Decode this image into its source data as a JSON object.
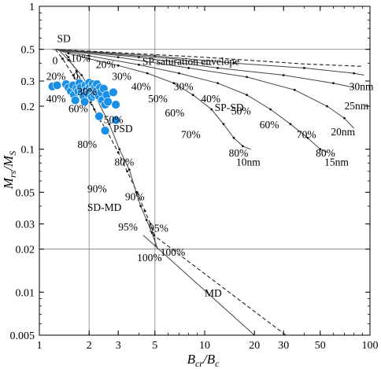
{
  "chart_data": {
    "type": "scatter",
    "title": "",
    "xscale": "log",
    "yscale": "log",
    "xlim": [
      1,
      100
    ],
    "ylim": [
      0.005,
      1
    ],
    "grid": "partial",
    "xlabel": {
      "main": "B",
      "sub1": "cr",
      "mid": "/B",
      "sub2": "c"
    },
    "ylabel": {
      "main": "M",
      "sub1": "rs",
      "mid": "/M",
      "sub2": "S"
    },
    "xticks": [
      {
        "value": 1,
        "label": "1"
      },
      {
        "value": 2,
        "label": "2"
      },
      {
        "value": 3,
        "label": "3"
      },
      {
        "value": 5,
        "label": "5"
      },
      {
        "value": 10,
        "label": "10"
      },
      {
        "value": 20,
        "label": "20"
      },
      {
        "value": 30,
        "label": "30"
      },
      {
        "value": 50,
        "label": "50"
      },
      {
        "value": 100,
        "label": "100"
      }
    ],
    "yticks": [
      {
        "value": 0.005,
        "label": "0.005"
      },
      {
        "value": 0.01,
        "label": "0.01"
      },
      {
        "value": 0.02,
        "label": "0.02"
      },
      {
        "value": 0.03,
        "label": "0.03"
      },
      {
        "value": 0.05,
        "label": "0.05"
      },
      {
        "value": 0.1,
        "label": "0.1"
      },
      {
        "value": 0.2,
        "label": "0.2"
      },
      {
        "value": 0.3,
        "label": "0.3"
      },
      {
        "value": 0.5,
        "label": "0.5"
      },
      {
        "value": 1,
        "label": "1"
      }
    ],
    "gridlines": {
      "x": [
        2,
        5
      ],
      "y": [
        0.02,
        0.5
      ]
    },
    "marker_color": "#1a8fe6",
    "points": [
      {
        "x": 1.2,
        "y": 0.275
      },
      {
        "x": 1.28,
        "y": 0.28
      },
      {
        "x": 1.45,
        "y": 0.285
      },
      {
        "x": 1.5,
        "y": 0.27
      },
      {
        "x": 1.55,
        "y": 0.255
      },
      {
        "x": 1.6,
        "y": 0.28
      },
      {
        "x": 1.62,
        "y": 0.24
      },
      {
        "x": 1.65,
        "y": 0.22
      },
      {
        "x": 1.68,
        "y": 0.265
      },
      {
        "x": 1.72,
        "y": 0.255
      },
      {
        "x": 1.75,
        "y": 0.29
      },
      {
        "x": 1.78,
        "y": 0.27
      },
      {
        "x": 1.8,
        "y": 0.25
      },
      {
        "x": 1.85,
        "y": 0.235
      },
      {
        "x": 1.88,
        "y": 0.215
      },
      {
        "x": 1.9,
        "y": 0.28
      },
      {
        "x": 1.93,
        "y": 0.26
      },
      {
        "x": 1.97,
        "y": 0.245
      },
      {
        "x": 2.0,
        "y": 0.292
      },
      {
        "x": 2.02,
        "y": 0.27
      },
      {
        "x": 2.05,
        "y": 0.255
      },
      {
        "x": 2.08,
        "y": 0.232
      },
      {
        "x": 2.1,
        "y": 0.285
      },
      {
        "x": 2.12,
        "y": 0.26
      },
      {
        "x": 2.15,
        "y": 0.24
      },
      {
        "x": 2.18,
        "y": 0.275
      },
      {
        "x": 2.2,
        "y": 0.25
      },
      {
        "x": 2.23,
        "y": 0.285
      },
      {
        "x": 2.26,
        "y": 0.26
      },
      {
        "x": 2.3,
        "y": 0.235
      },
      {
        "x": 2.33,
        "y": 0.27
      },
      {
        "x": 2.36,
        "y": 0.25
      },
      {
        "x": 2.4,
        "y": 0.22
      },
      {
        "x": 2.45,
        "y": 0.265
      },
      {
        "x": 2.5,
        "y": 0.205
      },
      {
        "x": 2.55,
        "y": 0.24
      },
      {
        "x": 2.6,
        "y": 0.215
      },
      {
        "x": 2.8,
        "y": 0.25
      },
      {
        "x": 2.9,
        "y": 0.205
      },
      {
        "x": 2.3,
        "y": 0.17
      },
      {
        "x": 2.9,
        "y": 0.16
      },
      {
        "x": 2.5,
        "y": 0.135
      }
    ],
    "curves": [
      {
        "style": "dashed",
        "points": [
          [
            1.35,
            0.5
          ],
          [
            1.5,
            0.44
          ],
          [
            1.68,
            0.35
          ],
          [
            1.87,
            0.27
          ],
          [
            2.05,
            0.215
          ],
          [
            2.25,
            0.17
          ],
          [
            2.35,
            0.155
          ]
        ]
      },
      {
        "style": "dashed",
        "points": [
          [
            1.25,
            0.5
          ],
          [
            1.38,
            0.43
          ],
          [
            1.6,
            0.33
          ],
          [
            1.9,
            0.24
          ],
          [
            2.15,
            0.19
          ],
          [
            2.6,
            0.13
          ],
          [
            3.0,
            0.095
          ],
          [
            3.4,
            0.07
          ],
          [
            3.9,
            0.05
          ],
          [
            4.35,
            0.037
          ],
          [
            4.7,
            0.03
          ],
          [
            4.95,
            0.025
          ],
          [
            5.05,
            0.021
          ]
        ]
      },
      {
        "style": "solid",
        "points": [
          [
            1.3,
            0.5
          ],
          [
            1.5,
            0.42
          ],
          [
            1.8,
            0.33
          ],
          [
            2.2,
            0.23
          ],
          [
            2.65,
            0.15
          ],
          [
            3.05,
            0.1
          ],
          [
            3.5,
            0.072
          ],
          [
            3.85,
            0.05
          ],
          [
            4.1,
            0.04
          ],
          [
            4.45,
            0.032
          ],
          [
            4.8,
            0.026
          ],
          [
            5.2,
            0.02
          ]
        ]
      },
      {
        "style": "solid",
        "points": [
          [
            1.25,
            0.5
          ],
          [
            1.5,
            0.47
          ],
          [
            2.0,
            0.43
          ],
          [
            3.0,
            0.385
          ],
          [
            4.5,
            0.34
          ],
          [
            6.5,
            0.29
          ],
          [
            8.5,
            0.24
          ],
          [
            11,
            0.19
          ],
          [
            13,
            0.15
          ],
          [
            15,
            0.12
          ],
          [
            17,
            0.105
          ],
          [
            19,
            0.1
          ]
        ]
      },
      {
        "style": "solid",
        "points": [
          [
            1.25,
            0.5
          ],
          [
            2.0,
            0.45
          ],
          [
            4.0,
            0.39
          ],
          [
            7.0,
            0.34
          ],
          [
            12,
            0.29
          ],
          [
            18,
            0.24
          ],
          [
            25,
            0.19
          ],
          [
            33,
            0.15
          ],
          [
            42,
            0.12
          ],
          [
            50,
            0.1
          ],
          [
            55,
            0.095
          ]
        ]
      },
      {
        "style": "solid",
        "points": [
          [
            1.25,
            0.5
          ],
          [
            3.0,
            0.44
          ],
          [
            8.0,
            0.37
          ],
          [
            18,
            0.32
          ],
          [
            35,
            0.26
          ],
          [
            55,
            0.2
          ],
          [
            70,
            0.165
          ],
          [
            80,
            0.14
          ]
        ]
      },
      {
        "style": "solid",
        "points": [
          [
            1.25,
            0.5
          ],
          [
            4.0,
            0.44
          ],
          [
            12,
            0.37
          ],
          [
            30,
            0.33
          ],
          [
            60,
            0.29
          ],
          [
            80,
            0.27
          ]
        ]
      },
      {
        "style": "solid",
        "points": [
          [
            1.25,
            0.5
          ],
          [
            5.0,
            0.45
          ],
          [
            15,
            0.4
          ],
          [
            40,
            0.37
          ],
          [
            80,
            0.34
          ],
          [
            92,
            0.33
          ]
        ]
      },
      {
        "style": "dashed",
        "points": [
          [
            1.25,
            0.5
          ],
          [
            10,
            0.44
          ],
          [
            40,
            0.395
          ],
          [
            90,
            0.38
          ]
        ]
      },
      {
        "style": "solid",
        "points": [
          [
            1.2,
            0.5
          ],
          [
            6.5,
            0.43
          ],
          [
            11,
            0.39
          ]
        ]
      },
      {
        "style": "solid",
        "points": [
          [
            4.25,
            0.025
          ],
          [
            20,
            0.005
          ]
        ]
      },
      {
        "style": "dashed",
        "points": [
          [
            5.15,
            0.024
          ],
          [
            31,
            0.005
          ]
        ]
      }
    ],
    "annotations": [
      {
        "text": "SD",
        "x": 1.28,
        "y": 0.56
      },
      {
        "text": "0",
        "x": 1.2,
        "y": 0.395
      },
      {
        "text": "10%",
        "x": 1.55,
        "y": 0.41
      },
      {
        "text": "20%",
        "x": 2.2,
        "y": 0.37
      },
      {
        "text": "20%",
        "x": 1.1,
        "y": 0.305
      },
      {
        "text": "0",
        "x": 1.6,
        "y": 0.305
      },
      {
        "text": "30%",
        "x": 2.75,
        "y": 0.305
      },
      {
        "text": "40%",
        "x": 3.6,
        "y": 0.26
      },
      {
        "text": "50%",
        "x": 4.55,
        "y": 0.213
      },
      {
        "text": "60%",
        "x": 5.75,
        "y": 0.17
      },
      {
        "text": "30%",
        "x": 6.5,
        "y": 0.26
      },
      {
        "text": "40%",
        "x": 9.5,
        "y": 0.213
      },
      {
        "text": "50%",
        "x": 14.5,
        "y": 0.175
      },
      {
        "text": "60%",
        "x": 21.5,
        "y": 0.14
      },
      {
        "text": "70%",
        "x": 7.2,
        "y": 0.12
      },
      {
        "text": "70%",
        "x": 36,
        "y": 0.12
      },
      {
        "text": "80%",
        "x": 14,
        "y": 0.089
      },
      {
        "text": "80%",
        "x": 47,
        "y": 0.089
      },
      {
        "text": "10nm",
        "x": 15.5,
        "y": 0.077
      },
      {
        "text": "15nm",
        "x": 53,
        "y": 0.077
      },
      {
        "text": "20nm",
        "x": 58,
        "y": 0.125
      },
      {
        "text": "25nm",
        "x": 70,
        "y": 0.19
      },
      {
        "text": "30nm",
        "x": 75,
        "y": 0.26
      },
      {
        "text": "SP saturation envelope",
        "x": 4.2,
        "y": 0.39
      },
      {
        "text": "SP-SD",
        "x": 11.5,
        "y": 0.185
      },
      {
        "text": "PSD",
        "x": 2.8,
        "y": 0.132
      },
      {
        "text": "40%",
        "x": 1.1,
        "y": 0.213
      },
      {
        "text": "60%",
        "x": 1.5,
        "y": 0.182
      },
      {
        "text": "30%",
        "x": 1.7,
        "y": 0.238
      },
      {
        "text": "50%",
        "x": 2.45,
        "y": 0.152
      },
      {
        "text": "80%",
        "x": 1.7,
        "y": 0.102
      },
      {
        "text": "80%",
        "x": 2.85,
        "y": 0.077
      },
      {
        "text": "90%",
        "x": 1.95,
        "y": 0.05
      },
      {
        "text": "90%",
        "x": 3.3,
        "y": 0.044
      },
      {
        "text": "SD-MD",
        "x": 1.95,
        "y": 0.037
      },
      {
        "text": "95%",
        "x": 3.0,
        "y": 0.027
      },
      {
        "text": "95%",
        "x": 4.6,
        "y": 0.0265
      },
      {
        "text": "100%",
        "x": 3.9,
        "y": 0.0165
      },
      {
        "text": "100%",
        "x": 5.4,
        "y": 0.018
      },
      {
        "text": "MD",
        "x": 10,
        "y": 0.0093
      }
    ]
  }
}
